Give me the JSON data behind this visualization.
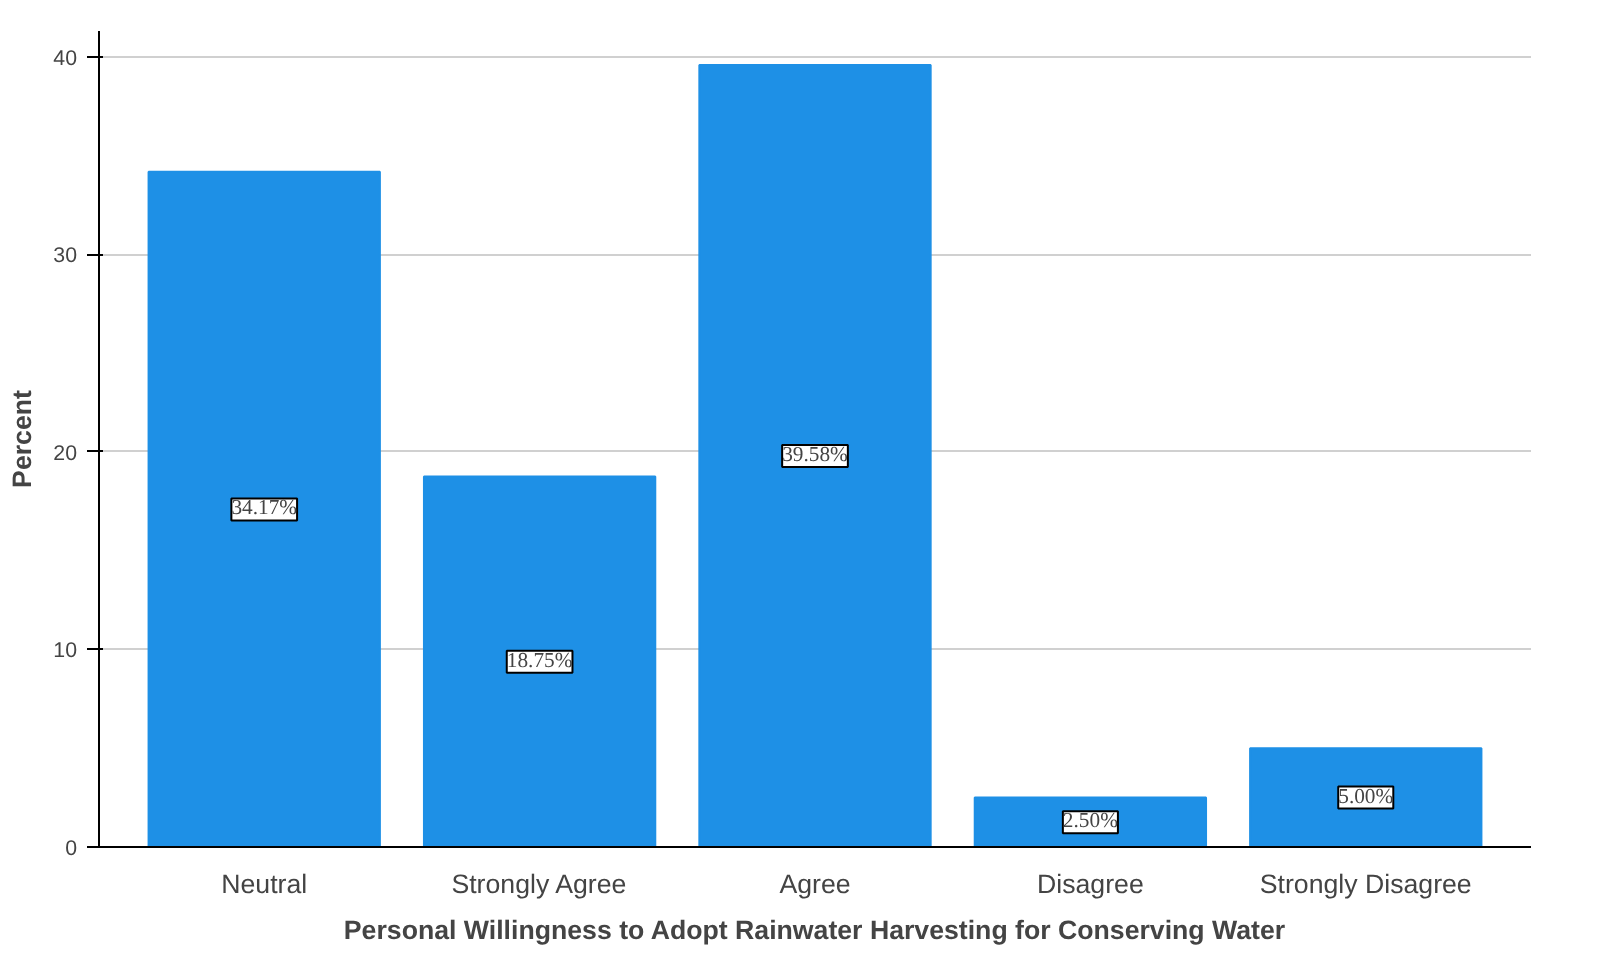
{
  "chart_data": {
    "type": "bar",
    "xlabel": "Personal Willingness to Adopt Rainwater Harvesting for Conserving Water",
    "ylabel": "Percent",
    "categories": [
      "Neutral",
      "Strongly Agree",
      "Agree",
      "Disagree",
      "Strongly Disagree"
    ],
    "values": [
      34.17,
      18.75,
      39.58,
      2.5,
      5.0
    ],
    "value_labels": [
      "34.17%",
      "18.75%",
      "39.58%",
      "2.50%",
      "5.00%"
    ],
    "color": "#1e90e6",
    "ylim": [
      0,
      41.3
    ],
    "yticks": [
      0,
      10,
      20,
      30,
      40
    ],
    "grid": "y"
  }
}
